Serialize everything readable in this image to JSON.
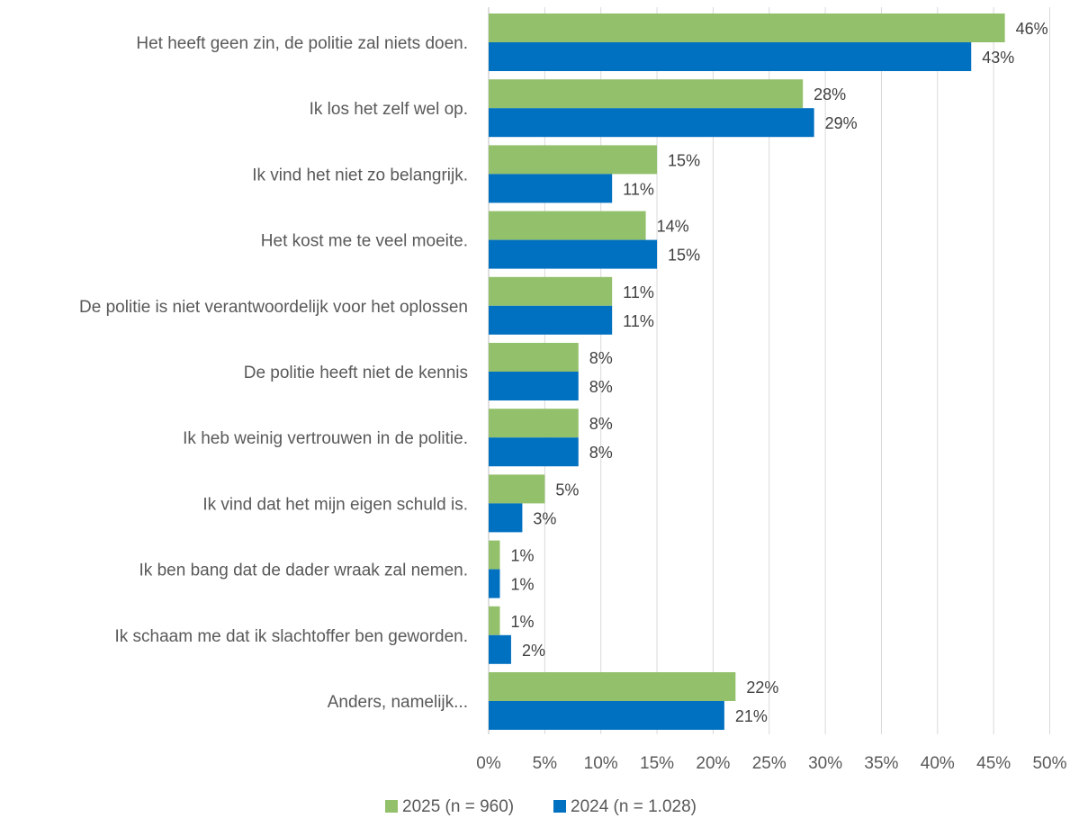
{
  "chart_data": {
    "type": "bar",
    "orientation": "horizontal",
    "categories": [
      "Het heeft geen zin, de politie zal niets doen.",
      "Ik los het zelf wel op.",
      "Ik vind het niet zo belangrijk.",
      "Het kost me te veel moeite.",
      "De politie is niet verantwoordelijk voor het oplossen",
      "De politie heeft niet de kennis",
      "Ik heb weinig vertrouwen in de politie.",
      "Ik vind dat het mijn eigen schuld is.",
      "Ik ben bang dat de dader wraak zal nemen.",
      "Ik schaam me dat ik slachtoffer ben geworden.",
      "Anders, namelijk..."
    ],
    "series": [
      {
        "name": "2025 (n = 960)",
        "color": "#93c06b",
        "values": [
          46,
          28,
          15,
          14,
          11,
          8,
          8,
          5,
          1,
          1,
          22
        ],
        "labels": [
          "46%",
          "28%",
          "15%",
          "14%",
          "11%",
          "8%",
          "8%",
          "5%",
          "1%",
          "1%",
          "22%"
        ]
      },
      {
        "name": "2024 (n = 1.028)",
        "color": "#0070c0",
        "values": [
          43,
          29,
          11,
          15,
          11,
          8,
          8,
          3,
          1,
          2,
          21
        ],
        "labels": [
          "43%",
          "29%",
          "11%",
          "15%",
          "11%",
          "8%",
          "8%",
          "3%",
          "1%",
          "2%",
          "21%"
        ]
      }
    ],
    "xlim": [
      0,
      50
    ],
    "xticks": [
      "0%",
      "5%",
      "10%",
      "15%",
      "20%",
      "25%",
      "30%",
      "35%",
      "40%",
      "45%",
      "50%"
    ],
    "grid": "vertical",
    "legend": "bottom-center"
  }
}
